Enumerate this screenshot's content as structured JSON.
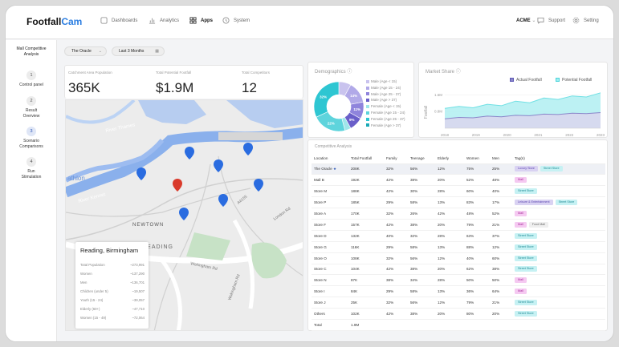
{
  "brand": {
    "name_part1": "Footfall",
    "name_part2": "Cam"
  },
  "nav": [
    {
      "label": "Dashboards",
      "icon": "dashboard-icon"
    },
    {
      "label": "Analytics",
      "icon": "bar-chart-icon"
    },
    {
      "label": "Apps",
      "icon": "apps-grid-icon",
      "active": true
    },
    {
      "label": "System",
      "icon": "clock-icon"
    }
  ],
  "account": {
    "org": "ACME",
    "support": "Support",
    "setting": "Setting"
  },
  "sidebar": {
    "title_line1": "Mall Competitive",
    "title_line2": "Analysis",
    "steps": [
      {
        "num": "1",
        "line1": "Control panel",
        "line2": ""
      },
      {
        "num": "2",
        "line1": "Result",
        "line2": "Overview"
      },
      {
        "num": "3",
        "line1": "Scenario",
        "line2": "Comparisons"
      },
      {
        "num": "4",
        "line1": "Run",
        "line2": "Stimulation"
      }
    ],
    "active_step": "3"
  },
  "filters": {
    "location": "The Oracle",
    "range": "Last 3 Months"
  },
  "kpis": [
    {
      "label": "Catchment Area Population",
      "value": "365K"
    },
    {
      "label": "Total Potential Footfall",
      "value": "$1.9M"
    },
    {
      "label": "Total Competitors",
      "value": "12"
    }
  ],
  "demographics": {
    "title": "Demographics",
    "segments": [
      {
        "label": "Male (Age < 15)",
        "pct": "",
        "color": "#c9c3ee",
        "share": 8
      },
      {
        "label": "Male (Age 15 - 24)",
        "pct": "14%",
        "color": "#b1a9e8",
        "share": 14
      },
      {
        "label": "Male (Age 25 - 37)",
        "pct": "11%",
        "color": "#8f84dc",
        "share": 11
      },
      {
        "label": "Male (Age > 37)",
        "pct": "9%",
        "color": "#6a5fc9",
        "share": 9
      },
      {
        "label": "Female (Age < 15)",
        "pct": "",
        "color": "#9fe6ea",
        "share": 4
      },
      {
        "label": "Female (Age 15 - 24)",
        "pct": "22%",
        "color": "#5ed4dc",
        "share": 22
      },
      {
        "label": "Female (Age 25 - 37)",
        "pct": "32%",
        "color": "#2ec6d2",
        "share": 32
      },
      {
        "label": "Female (Age > 37)",
        "pct": "",
        "color": "#1ba9b6",
        "share": 0
      }
    ]
  },
  "market_share": {
    "title": "Market Share",
    "legend_actual": "Actual Footfall",
    "legend_potential": "Potential Footfall"
  },
  "chart_data": {
    "type": "area",
    "title": "Market Share",
    "ylabel": "Footfall",
    "y_ticks": [
      "1.6M",
      "0.8M"
    ],
    "x_ticks": [
      "2018",
      "2019",
      "2020",
      "2021",
      "2022",
      "2023"
    ],
    "ylim": [
      0,
      2.0
    ],
    "series": [
      {
        "name": "Actual Footfall",
        "color": "#8a86c9",
        "values": [
          0.45,
          0.52,
          0.5,
          0.58,
          0.55,
          0.62,
          0.6,
          0.68,
          0.66,
          0.72,
          0.7,
          0.75
        ]
      },
      {
        "name": "Potential Footfall",
        "color": "#6fe0e4",
        "values": [
          0.95,
          1.05,
          0.98,
          1.15,
          1.08,
          1.3,
          1.22,
          1.45,
          1.38,
          1.55,
          1.5,
          1.7
        ]
      }
    ]
  },
  "map": {
    "labels": {
      "thames": "River Thames",
      "kennet": "River Kennet",
      "athlon": "athlon",
      "newtown": "NEWTOWN",
      "east_reading": "EAST READING",
      "wokingham_rd": "Wokingham Rd",
      "london_rd": "London Rd",
      "a4155": "A4155"
    },
    "popup": {
      "title": "Reading, Birmingham",
      "rows": [
        {
          "label": "Total Population",
          "value": "~273,991"
        },
        {
          "label": "Women",
          "value": "~137,290"
        },
        {
          "label": "Men",
          "value": "~136,701"
        },
        {
          "label": "Children (under 5)",
          "value": "~19,507"
        },
        {
          "label": "Youth (15 - 24)",
          "value": "~39,057"
        },
        {
          "label": "Elderly (60+)",
          "value": "~47,710"
        },
        {
          "label": "Women (15 - 49)",
          "value": "~72,064"
        }
      ]
    }
  },
  "competitive": {
    "title": "Competitive Analysis",
    "columns": [
      "Location",
      "Total Footfall",
      "Family",
      "Teenage",
      "Elderly",
      "Women",
      "Men",
      "Tag(s)"
    ],
    "rows": [
      {
        "loc": "The Oracle",
        "ff": "208K",
        "fam": "32%",
        "teen": "56%",
        "eld": "12%",
        "wom": "75%",
        "men": "25%",
        "tags": [
          {
            "t": "Luxury Store",
            "c": "lux"
          },
          {
            "t": "Street Store",
            "c": "street"
          }
        ],
        "star": true
      },
      {
        "loc": "Mall B",
        "ff": "192K",
        "fam": "42%",
        "teen": "38%",
        "eld": "20%",
        "wom": "52%",
        "men": "48%",
        "tags": [
          {
            "t": "Mall",
            "c": "mall"
          }
        ]
      },
      {
        "loc": "Store M",
        "ff": "188K",
        "fam": "42%",
        "teen": "30%",
        "eld": "28%",
        "wom": "60%",
        "men": "40%",
        "tags": [
          {
            "t": "Street Store",
            "c": "street"
          }
        ]
      },
      {
        "loc": "Store P",
        "ff": "185K",
        "fam": "29%",
        "teen": "58%",
        "eld": "13%",
        "wom": "83%",
        "men": "17%",
        "tags": [
          {
            "t": "Leisure & Entertainment",
            "c": "leis"
          },
          {
            "t": "Street Store",
            "c": "street"
          }
        ]
      },
      {
        "loc": "Store A",
        "ff": "170K",
        "fam": "32%",
        "teen": "26%",
        "eld": "42%",
        "wom": "48%",
        "men": "52%",
        "tags": [
          {
            "t": "Mall",
            "c": "mall"
          }
        ]
      },
      {
        "loc": "Store F",
        "ff": "157K",
        "fam": "42%",
        "teen": "38%",
        "eld": "20%",
        "wom": "79%",
        "men": "21%",
        "tags": [
          {
            "t": "Mall",
            "c": "mall"
          },
          {
            "t": "Food Mall",
            "c": "food"
          }
        ]
      },
      {
        "loc": "Store D",
        "ff": "132K",
        "fam": "40%",
        "teen": "32%",
        "eld": "28%",
        "wom": "63%",
        "men": "37%",
        "tags": [
          {
            "t": "Street Store",
            "c": "street"
          }
        ]
      },
      {
        "loc": "Store G",
        "ff": "116K",
        "fam": "29%",
        "teen": "58%",
        "eld": "13%",
        "wom": "88%",
        "men": "12%",
        "tags": [
          {
            "t": "Street Store",
            "c": "street"
          }
        ]
      },
      {
        "loc": "Store O",
        "ff": "108K",
        "fam": "32%",
        "teen": "56%",
        "eld": "12%",
        "wom": "40%",
        "men": "60%",
        "tags": [
          {
            "t": "Street Store",
            "c": "street"
          }
        ]
      },
      {
        "loc": "Store C",
        "ff": "104K",
        "fam": "42%",
        "teen": "38%",
        "eld": "20%",
        "wom": "62%",
        "men": "38%",
        "tags": [
          {
            "t": "Street Store",
            "c": "street"
          }
        ]
      },
      {
        "loc": "Store N",
        "ff": "87K",
        "fam": "38%",
        "teen": "34%",
        "eld": "28%",
        "wom": "50%",
        "men": "50%",
        "tags": [
          {
            "t": "Mall",
            "c": "mall"
          }
        ]
      },
      {
        "loc": "Store I",
        "ff": "84K",
        "fam": "29%",
        "teen": "58%",
        "eld": "13%",
        "wom": "36%",
        "men": "64%",
        "tags": [
          {
            "t": "Mall",
            "c": "mall"
          }
        ]
      },
      {
        "loc": "Store J",
        "ff": "25K",
        "fam": "32%",
        "teen": "56%",
        "eld": "12%",
        "wom": "79%",
        "men": "21%",
        "tags": [
          {
            "t": "Street Store",
            "c": "street"
          }
        ]
      },
      {
        "loc": "Others",
        "ff": "102K",
        "fam": "42%",
        "teen": "38%",
        "eld": "20%",
        "wom": "80%",
        "men": "20%",
        "tags": [
          {
            "t": "Street Store",
            "c": "street"
          }
        ]
      },
      {
        "loc": "Total",
        "ff": "1.9M",
        "fam": "",
        "teen": "",
        "eld": "",
        "wom": "",
        "men": "",
        "tags": []
      }
    ]
  }
}
